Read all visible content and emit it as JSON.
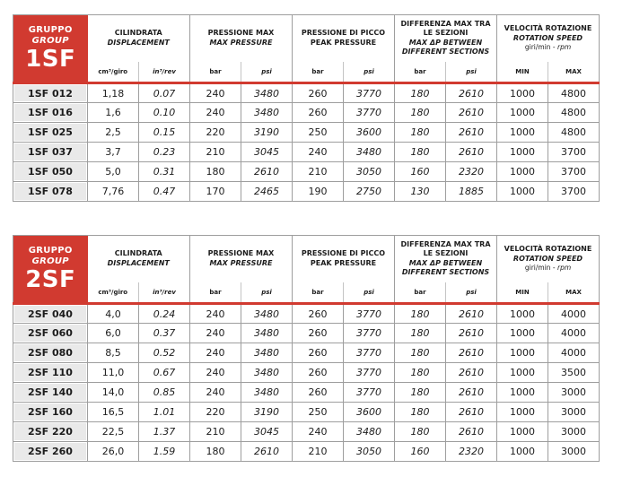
{
  "colors": {
    "accent_red": "#d13a30",
    "label_cell_bg": "#e9e9e9",
    "grid_border": "#9e9e9e",
    "text": "#1c1c1c"
  },
  "tables": [
    {
      "group_badge": {
        "line1": "GRUPPO",
        "line2": "GROUP",
        "code": "1SF"
      },
      "column_groups": [
        {
          "it": "CILINDRATA",
          "en": "DISPLACEMENT",
          "en_italic": true,
          "units": [
            {
              "label": "cm³/giro",
              "italic": false
            },
            {
              "label": "in³/rev",
              "italic": true
            }
          ]
        },
        {
          "it": "PRESSIONE MAX",
          "en": "MAX PRESSURE",
          "en_italic": true,
          "units": [
            {
              "label": "bar",
              "italic": false
            },
            {
              "label": "psi",
              "italic": true
            }
          ]
        },
        {
          "it": "PRESSIONE DI PICCO",
          "en": "PEAK PRESSURE",
          "en_italic": false,
          "units": [
            {
              "label": "bar",
              "italic": false
            },
            {
              "label": "psi",
              "italic": true
            }
          ]
        },
        {
          "it": "DIFFERENZA MAX TRA LE SEZIONI",
          "en": "MAX ΔP BETWEEN DIFFERENT SECTIONS",
          "en_italic": true,
          "units": [
            {
              "label": "bar",
              "italic": false
            },
            {
              "label": "psi",
              "italic": true
            }
          ]
        },
        {
          "it": "VELOCITÀ ROTAZIONE",
          "en": "ROTATION SPEED",
          "en_italic": true,
          "subtitle_plain": "giri/min - ",
          "subtitle_italic": "rpm",
          "units": [
            {
              "label": "MIN",
              "italic": false
            },
            {
              "label": "MAX",
              "italic": false
            }
          ]
        }
      ],
      "rows": [
        {
          "model": "1SF 012",
          "values": [
            "1,18",
            "0.07",
            "240",
            "3480",
            "260",
            "3770",
            "180",
            "2610",
            "1000",
            "4800"
          ]
        },
        {
          "model": "1SF 016",
          "values": [
            "1,6",
            "0.10",
            "240",
            "3480",
            "260",
            "3770",
            "180",
            "2610",
            "1000",
            "4800"
          ]
        },
        {
          "model": "1SF 025",
          "values": [
            "2,5",
            "0.15",
            "220",
            "3190",
            "250",
            "3600",
            "180",
            "2610",
            "1000",
            "4800"
          ]
        },
        {
          "model": "1SF 037",
          "values": [
            "3,7",
            "0.23",
            "210",
            "3045",
            "240",
            "3480",
            "180",
            "2610",
            "1000",
            "3700"
          ]
        },
        {
          "model": "1SF 050",
          "values": [
            "5,0",
            "0.31",
            "180",
            "2610",
            "210",
            "3050",
            "160",
            "2320",
            "1000",
            "3700"
          ]
        },
        {
          "model": "1SF 078",
          "values": [
            "7,76",
            "0.47",
            "170",
            "2465",
            "190",
            "2750",
            "130",
            "1885",
            "1000",
            "3700"
          ]
        }
      ]
    },
    {
      "group_badge": {
        "line1": "GRUPPO",
        "line2": "GROUP",
        "code": "2SF"
      },
      "column_groups": [
        {
          "it": "CILINDRATA",
          "en": "DISPLACEMENT",
          "en_italic": true,
          "units": [
            {
              "label": "cm³/giro",
              "italic": false
            },
            {
              "label": "in³/rev",
              "italic": true
            }
          ]
        },
        {
          "it": "PRESSIONE MAX",
          "en": "MAX PRESSURE",
          "en_italic": true,
          "units": [
            {
              "label": "bar",
              "italic": false
            },
            {
              "label": "psi",
              "italic": true
            }
          ]
        },
        {
          "it": "PRESSIONE DI PICCO",
          "en": "PEAK PRESSURE",
          "en_italic": false,
          "units": [
            {
              "label": "bar",
              "italic": false
            },
            {
              "label": "psi",
              "italic": true
            }
          ]
        },
        {
          "it": "DIFFERENZA MAX TRA LE SEZIONI",
          "en": "MAX ΔP BETWEEN DIFFERENT SECTIONS",
          "en_italic": true,
          "units": [
            {
              "label": "bar",
              "italic": false
            },
            {
              "label": "psi",
              "italic": true
            }
          ]
        },
        {
          "it": "VELOCITÀ ROTAZIONE",
          "en": "ROTATION SPEED",
          "en_italic": true,
          "subtitle_plain": "giri/min - ",
          "subtitle_italic": "rpm",
          "units": [
            {
              "label": "MIN",
              "italic": false
            },
            {
              "label": "MAX",
              "italic": false
            }
          ]
        }
      ],
      "rows": [
        {
          "model": "2SF 040",
          "values": [
            "4,0",
            "0.24",
            "240",
            "3480",
            "260",
            "3770",
            "180",
            "2610",
            "1000",
            "4000"
          ]
        },
        {
          "model": "2SF 060",
          "values": [
            "6,0",
            "0.37",
            "240",
            "3480",
            "260",
            "3770",
            "180",
            "2610",
            "1000",
            "4000"
          ]
        },
        {
          "model": "2SF 080",
          "values": [
            "8,5",
            "0.52",
            "240",
            "3480",
            "260",
            "3770",
            "180",
            "2610",
            "1000",
            "4000"
          ]
        },
        {
          "model": "2SF 110",
          "values": [
            "11,0",
            "0.67",
            "240",
            "3480",
            "260",
            "3770",
            "180",
            "2610",
            "1000",
            "3500"
          ]
        },
        {
          "model": "2SF 140",
          "values": [
            "14,0",
            "0.85",
            "240",
            "3480",
            "260",
            "3770",
            "180",
            "2610",
            "1000",
            "3000"
          ]
        },
        {
          "model": "2SF 160",
          "values": [
            "16,5",
            "1.01",
            "220",
            "3190",
            "250",
            "3600",
            "180",
            "2610",
            "1000",
            "3000"
          ]
        },
        {
          "model": "2SF 220",
          "values": [
            "22,5",
            "1.37",
            "210",
            "3045",
            "240",
            "3480",
            "180",
            "2610",
            "1000",
            "3000"
          ]
        },
        {
          "model": "2SF 260",
          "values": [
            "26,0",
            "1.59",
            "180",
            "2610",
            "210",
            "3050",
            "160",
            "2320",
            "1000",
            "3000"
          ]
        }
      ]
    }
  ]
}
